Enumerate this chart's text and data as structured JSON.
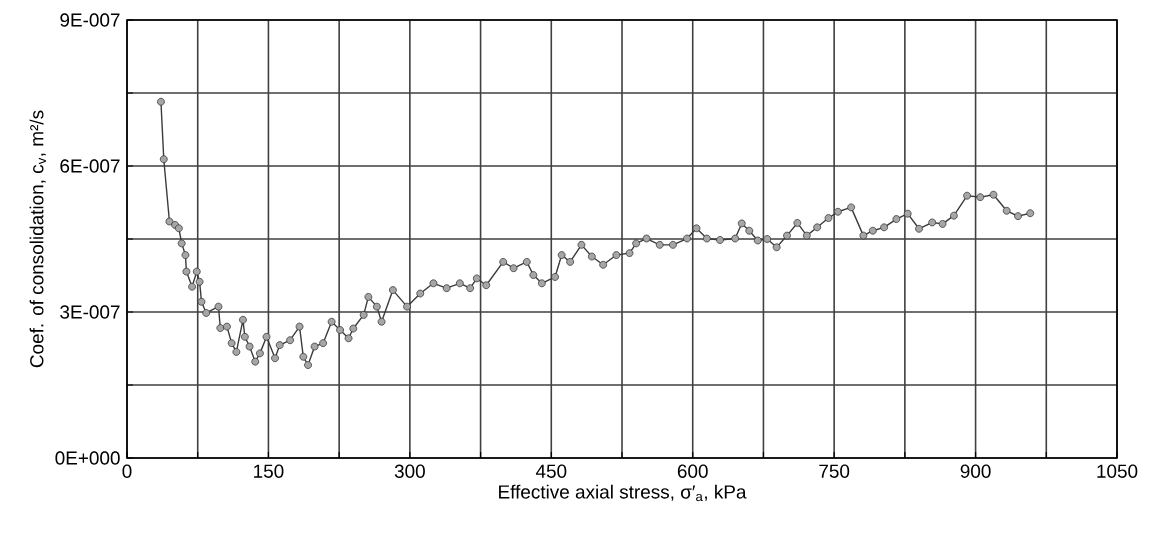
{
  "chart_data": {
    "type": "line",
    "xlabel": "Effective axial stress, σ′$_{a}$, kPa",
    "ylabel": "Coef. of consolidation, c$_{v}$, m²/s",
    "xlim": [
      0,
      1050
    ],
    "ylim": [
      0,
      9e-07
    ],
    "xticks": [
      0,
      {
        "value": 75,
        "label": null
      },
      150,
      {
        "value": 225,
        "label": null
      },
      300,
      {
        "value": 375,
        "label": null
      },
      450,
      {
        "value": 525,
        "label": null
      },
      600,
      {
        "value": 675,
        "label": null
      },
      750,
      {
        "value": 825,
        "label": null
      },
      900,
      {
        "value": 975,
        "label": null
      },
      1050
    ],
    "yticks": [
      {
        "value": 0,
        "label": "0E+000"
      },
      {
        "value": 1.5e-07,
        "label": null
      },
      {
        "value": 3e-07,
        "label": "3E-007"
      },
      {
        "value": 4.5e-07,
        "label": null
      },
      {
        "value": 6e-07,
        "label": "6E-007"
      },
      {
        "value": 7.5e-07,
        "label": null
      },
      {
        "value": 9e-07,
        "label": "9E-007"
      }
    ],
    "grid": true,
    "marker": "circle",
    "line_style": "solid",
    "color": "#3a3a3a",
    "x": [
      36,
      39,
      45,
      51,
      55,
      58,
      62,
      63,
      69,
      74,
      77,
      79,
      84,
      97,
      99,
      106,
      111,
      116,
      123,
      125,
      130,
      136,
      141,
      148,
      157,
      162,
      173,
      183,
      187,
      192,
      199,
      208,
      217,
      226,
      235,
      240,
      251,
      256,
      265,
      270,
      282,
      297,
      311,
      325,
      339,
      353,
      364,
      371,
      381,
      399,
      410,
      424,
      431,
      440,
      454,
      461,
      470,
      482,
      493,
      505,
      519,
      533,
      540,
      551,
      565,
      579,
      594,
      604,
      615,
      629,
      645,
      652,
      660,
      669,
      679,
      689,
      700,
      711,
      721,
      732,
      744,
      754,
      768,
      781,
      791,
      803,
      816,
      828,
      840,
      854,
      865,
      877,
      891,
      905,
      919,
      933,
      945,
      958
    ],
    "values": [
      7.32e-07,
      6.14e-07,
      4.86e-07,
      4.79e-07,
      4.72e-07,
      4.41e-07,
      4.17e-07,
      3.83e-07,
      3.52e-07,
      3.83e-07,
      3.62e-07,
      3.21e-07,
      2.98e-07,
      3.11e-07,
      2.67e-07,
      2.7e-07,
      2.36e-07,
      2.18e-07,
      2.84e-07,
      2.49e-07,
      2.29e-07,
      1.98e-07,
      2.15e-07,
      2.49e-07,
      2.05e-07,
      2.32e-07,
      2.42e-07,
      2.7e-07,
      2.08e-07,
      1.91e-07,
      2.29e-07,
      2.36e-07,
      2.8e-07,
      2.63e-07,
      2.46e-07,
      2.66e-07,
      2.94e-07,
      3.31e-07,
      3.11e-07,
      2.8e-07,
      3.45e-07,
      3.11e-07,
      3.38e-07,
      3.59e-07,
      3.49e-07,
      3.59e-07,
      3.49e-07,
      3.69e-07,
      3.55e-07,
      4.03e-07,
      3.9e-07,
      4.03e-07,
      3.76e-07,
      3.59e-07,
      3.72e-07,
      4.17e-07,
      4.03e-07,
      4.38e-07,
      4.14e-07,
      3.97e-07,
      4.17e-07,
      4.21e-07,
      4.41e-07,
      4.51e-07,
      4.38e-07,
      4.38e-07,
      4.51e-07,
      4.72e-07,
      4.51e-07,
      4.48e-07,
      4.51e-07,
      4.82e-07,
      4.67e-07,
      4.47e-07,
      4.5e-07,
      4.33e-07,
      4.57e-07,
      4.83e-07,
      4.57e-07,
      4.74e-07,
      4.93e-07,
      5.06e-07,
      5.15e-07,
      4.57e-07,
      4.67e-07,
      4.74e-07,
      4.91e-07,
      5.02e-07,
      4.71e-07,
      4.84e-07,
      4.81e-07,
      4.98e-07,
      5.39e-07,
      5.36e-07,
      5.41e-07,
      5.08e-07,
      4.97e-07,
      5.03e-07
    ]
  }
}
